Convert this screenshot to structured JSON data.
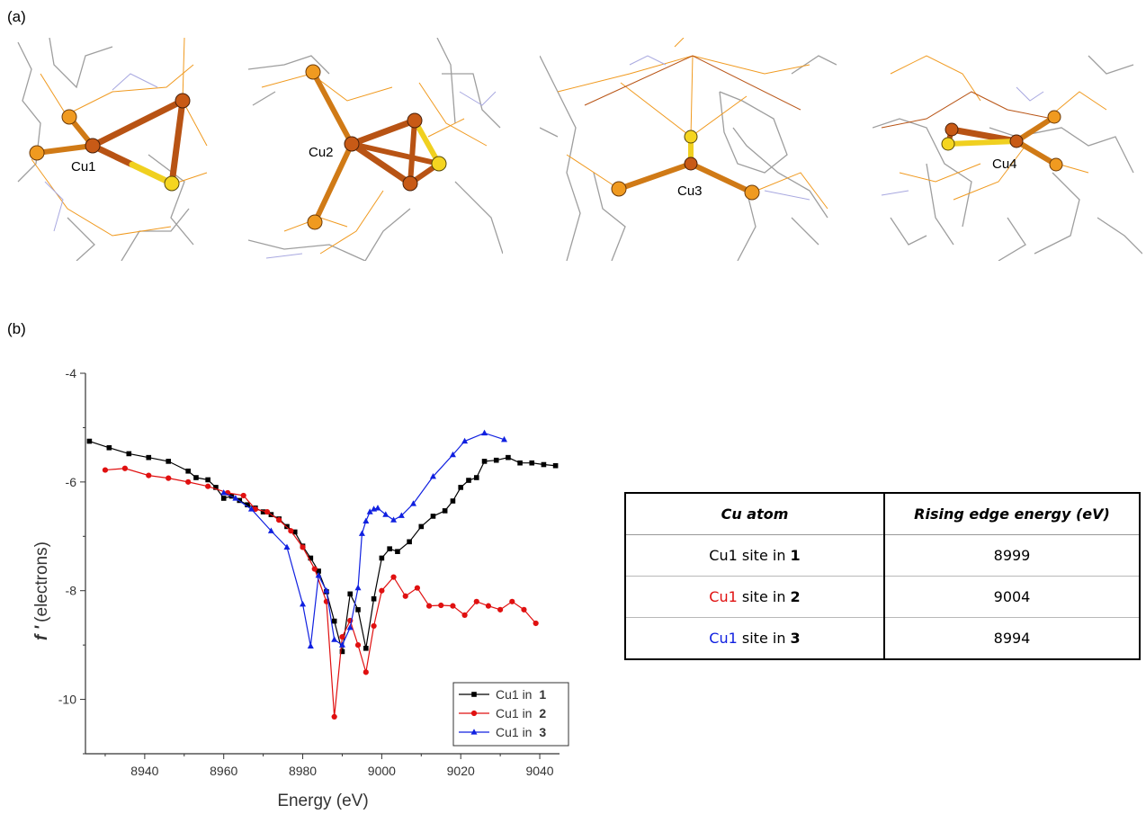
{
  "panel_a": {
    "label": "(a)",
    "sites": [
      {
        "label": "Cu1",
        "color": "#c85a16"
      },
      {
        "label": "Cu2",
        "color": "#c85a16"
      },
      {
        "label": "Cu3",
        "color": "#c85a16"
      },
      {
        "label": "Cu4",
        "color": "#c85a16"
      }
    ],
    "atom_colors": {
      "copper": "#c85a16",
      "phosphorus": "#f09a20",
      "sulfur": "#f5d520",
      "carbon": "#9e9e9e",
      "nitrogen": "#a8a8e0"
    }
  },
  "panel_b": {
    "label": "(b)"
  },
  "chart_data": {
    "type": "line",
    "xlabel": "Energy (eV)",
    "ylabel": "(electrons)",
    "ylabel_symbol": "f '",
    "xlim": [
      8925,
      9045
    ],
    "ylim": [
      -11,
      -4
    ],
    "xticks": [
      8940,
      8960,
      8980,
      9000,
      9020,
      9040
    ],
    "xtick_labels": [
      "8940",
      "8960",
      "8980",
      "9000",
      "9020",
      "9040"
    ],
    "yticks": [
      -10,
      -8,
      -6,
      -4
    ],
    "ytick_labels": [
      "-10",
      "-8",
      "-6",
      "-4"
    ],
    "grid": false,
    "legend_position": "bottom-right",
    "series": [
      {
        "name": "Cu1 in ",
        "name_bold": "1",
        "color": "#000000",
        "marker": "square",
        "x": [
          8926,
          8931,
          8936,
          8941,
          8946,
          8951,
          8953,
          8956,
          8958,
          8960,
          8962,
          8964,
          8966,
          8968,
          8970,
          8972,
          8974,
          8976,
          8978,
          8980,
          8982,
          8984,
          8986,
          8988,
          8990,
          8992,
          8994,
          8996,
          8998,
          9000,
          9002,
          9004,
          9007,
          9010,
          9013,
          9016,
          9018,
          9020,
          9022,
          9024,
          9026,
          9029,
          9032,
          9035,
          9038,
          9041,
          9044
        ],
        "y": [
          -5.25,
          -5.37,
          -5.48,
          -5.55,
          -5.62,
          -5.8,
          -5.92,
          -5.96,
          -6.1,
          -6.3,
          -6.26,
          -6.34,
          -6.42,
          -6.48,
          -6.55,
          -6.6,
          -6.68,
          -6.82,
          -6.92,
          -7.18,
          -7.4,
          -7.64,
          -8.02,
          -8.56,
          -9.12,
          -8.06,
          -8.35,
          -9.06,
          -8.15,
          -7.4,
          -7.23,
          -7.28,
          -7.1,
          -6.82,
          -6.63,
          -6.53,
          -6.35,
          -6.1,
          -5.97,
          -5.92,
          -5.62,
          -5.6,
          -5.55,
          -5.65,
          -5.65,
          -5.68,
          -5.7
        ]
      },
      {
        "name": "Cu1 in ",
        "name_bold": "2",
        "color": "#e01010",
        "marker": "circle",
        "x": [
          8930,
          8935,
          8941,
          8946,
          8951,
          8956,
          8961,
          8965,
          8968,
          8971,
          8974,
          8977,
          8980,
          8983,
          8986,
          8988,
          8990,
          8992,
          8994,
          8996,
          8998,
          9000,
          9003,
          9006,
          9009,
          9012,
          9015,
          9018,
          9021,
          9024,
          9027,
          9030,
          9033,
          9036,
          9039
        ],
        "y": [
          -5.78,
          -5.75,
          -5.88,
          -5.93,
          -6.0,
          -6.08,
          -6.2,
          -6.25,
          -6.5,
          -6.55,
          -6.7,
          -6.9,
          -7.2,
          -7.6,
          -8.2,
          -10.32,
          -8.85,
          -8.55,
          -9.0,
          -9.5,
          -8.65,
          -8.0,
          -7.75,
          -8.1,
          -7.95,
          -8.28,
          -8.27,
          -8.28,
          -8.45,
          -8.2,
          -8.28,
          -8.35,
          -8.2,
          -8.35,
          -8.6
        ]
      },
      {
        "name": "Cu1 in ",
        "name_bold": "3",
        "color": "#1020e0",
        "marker": "triangle",
        "x": [
          8960,
          8963,
          8967,
          8972,
          8976,
          8980,
          8982,
          8984,
          8986,
          8988,
          8990,
          8992,
          8994,
          8995,
          8996,
          8997,
          8998,
          8999,
          9001,
          9003,
          9005,
          9008,
          9013,
          9018,
          9021,
          9026,
          9031
        ],
        "y": [
          -6.2,
          -6.3,
          -6.5,
          -6.9,
          -7.2,
          -8.25,
          -9.02,
          -7.72,
          -8.0,
          -8.9,
          -9.0,
          -8.68,
          -7.95,
          -6.95,
          -6.72,
          -6.55,
          -6.5,
          -6.48,
          -6.6,
          -6.7,
          -6.62,
          -6.4,
          -5.9,
          -5.5,
          -5.25,
          -5.1,
          -5.22
        ]
      }
    ]
  },
  "table": {
    "headers": [
      "Cu atom",
      "Rising edge energy (eV)"
    ],
    "rows": [
      {
        "site": "Cu1",
        "site_color": "#000000",
        "middle": " site in ",
        "compound": "1",
        "energy": "8999"
      },
      {
        "site": "Cu1",
        "site_color": "#e01010",
        "middle": " site in ",
        "compound": "2",
        "energy": "9004"
      },
      {
        "site": "Cu1",
        "site_color": "#1020e0",
        "middle": " site in ",
        "compound": "3",
        "energy": "8994"
      }
    ]
  }
}
